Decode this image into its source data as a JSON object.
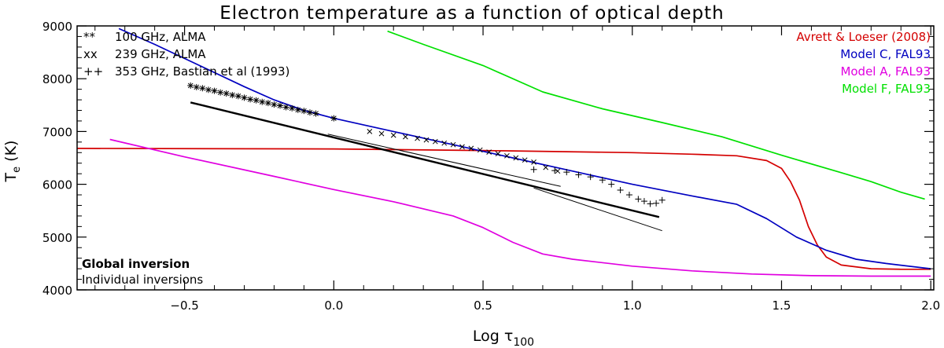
{
  "chart_data": {
    "type": "line",
    "title": "Electron temperature as a function of optical depth",
    "xlabel": {
      "main": "Log τ",
      "sub": "100"
    },
    "ylabel": {
      "main": "T",
      "sub": "e",
      "unit": " (K)"
    },
    "xlim": [
      -0.86,
      2.01
    ],
    "ylim": [
      4000,
      9000
    ],
    "x_ticks": [
      -0.5,
      0.0,
      0.5,
      1.0,
      1.5,
      2.0
    ],
    "x_tick_labels": [
      "−0.5",
      "0.0",
      "0.5",
      "1.0",
      "1.5",
      "2.0"
    ],
    "y_ticks": [
      4000,
      5000,
      6000,
      7000,
      8000,
      9000
    ],
    "y_tick_labels": [
      "4000",
      "5000",
      "6000",
      "7000",
      "8000",
      "9000"
    ],
    "grid": false,
    "model_legend": {
      "placement": "top-right",
      "entries": [
        {
          "label": "Avrett & Loeser (2008)",
          "color": "#d40000"
        },
        {
          "label": "Model C, FAL93",
          "color": "#0000c0"
        },
        {
          "label": "Model A, FAL93",
          "color": "#e000e0"
        },
        {
          "label": "Model F, FAL93",
          "color": "#00e000"
        }
      ]
    },
    "obs_legend": {
      "placement": "top-left",
      "entries": [
        {
          "symbols": "**",
          "label": "100 GHz, ALMA"
        },
        {
          "symbols": "xx",
          "label": "239 GHz, ALMA"
        },
        {
          "symbols": "++",
          "label": "353 GHz, Bastian et al (1993)"
        }
      ]
    },
    "notes": [
      {
        "text": "Global inversion",
        "style": "bold"
      },
      {
        "text": "Individual inversions",
        "style": "normal"
      }
    ],
    "series": [
      {
        "name": "Avrett & Loeser (2008)",
        "color": "#d40000",
        "x": [
          -0.86,
          0.0,
          0.5,
          1.0,
          1.2,
          1.35,
          1.45,
          1.5,
          1.53,
          1.56,
          1.59,
          1.62,
          1.65,
          1.7,
          1.8,
          1.9,
          2.0
        ],
        "y": [
          6680,
          6670,
          6640,
          6600,
          6570,
          6540,
          6450,
          6300,
          6050,
          5700,
          5200,
          4850,
          4620,
          4470,
          4400,
          4390,
          4390
        ]
      },
      {
        "name": "Model C, FAL93",
        "color": "#0000c0",
        "x": [
          -0.72,
          -0.6,
          -0.45,
          -0.3,
          -0.2,
          -0.1,
          0.0,
          0.2,
          0.4,
          0.6,
          0.8,
          1.0,
          1.2,
          1.35,
          1.45,
          1.55,
          1.65,
          1.75,
          1.85,
          2.0
        ],
        "y": [
          8950,
          8650,
          8250,
          7850,
          7600,
          7400,
          7250,
          7000,
          6750,
          6500,
          6250,
          6000,
          5780,
          5620,
          5350,
          5000,
          4750,
          4580,
          4500,
          4400
        ]
      },
      {
        "name": "Model A, FAL93",
        "color": "#e000e0",
        "x": [
          -0.75,
          -0.5,
          -0.2,
          0.0,
          0.2,
          0.4,
          0.5,
          0.6,
          0.7,
          0.8,
          1.0,
          1.2,
          1.4,
          1.6,
          1.8,
          2.0
        ],
        "y": [
          6850,
          6520,
          6150,
          5900,
          5670,
          5400,
          5180,
          4900,
          4680,
          4580,
          4450,
          4360,
          4300,
          4270,
          4260,
          4260
        ]
      },
      {
        "name": "Model F, FAL93",
        "color": "#00e000",
        "x": [
          0.18,
          0.3,
          0.5,
          0.7,
          0.9,
          1.1,
          1.3,
          1.5,
          1.7,
          1.8,
          1.9,
          1.98
        ],
        "y": [
          8900,
          8650,
          8250,
          7750,
          7430,
          7170,
          6900,
          6550,
          6220,
          6050,
          5850,
          5720
        ]
      },
      {
        "name": "Global inversion",
        "color": "#000000",
        "width": 2.4,
        "x": [
          -0.48,
          1.09
        ],
        "y": [
          7550,
          5380
        ]
      },
      {
        "name": "Individual inversions (100 GHz)",
        "color": "#000000",
        "width": 1.0,
        "x": [
          -0.02,
          0.76
        ],
        "y": [
          6950,
          5960
        ]
      },
      {
        "name": "Individual inversions (353 GHz)",
        "color": "#000000",
        "width": 1.0,
        "x": [
          0.67,
          1.1
        ],
        "y": [
          5930,
          5120
        ]
      }
    ],
    "scatter": [
      {
        "marker": "*",
        "x": [
          -0.48,
          -0.46,
          -0.44,
          -0.42,
          -0.4,
          -0.38,
          -0.36,
          -0.34,
          -0.32,
          -0.3,
          -0.28,
          -0.26,
          -0.24,
          -0.22,
          -0.2,
          -0.18,
          -0.16,
          -0.14,
          -0.12,
          -0.1,
          -0.08,
          -0.06,
          0.0
        ],
        "y": [
          7870,
          7840,
          7820,
          7790,
          7770,
          7740,
          7720,
          7690,
          7670,
          7640,
          7610,
          7590,
          7560,
          7540,
          7510,
          7490,
          7460,
          7440,
          7410,
          7390,
          7360,
          7340,
          7250
        ]
      },
      {
        "marker": "x",
        "x": [
          0.12,
          0.16,
          0.2,
          0.24,
          0.28,
          0.31,
          0.34,
          0.37,
          0.4,
          0.43,
          0.46,
          0.49,
          0.52,
          0.55,
          0.58,
          0.61,
          0.64,
          0.67,
          0.71,
          0.75
        ],
        "y": [
          7000,
          6960,
          6930,
          6900,
          6870,
          6840,
          6810,
          6780,
          6750,
          6710,
          6680,
          6650,
          6610,
          6580,
          6540,
          6500,
          6460,
          6420,
          6320,
          6250
        ]
      },
      {
        "marker": "+",
        "x": [
          0.67,
          0.74,
          0.78,
          0.82,
          0.86,
          0.9,
          0.93,
          0.96,
          0.99,
          1.02,
          1.04,
          1.06,
          1.08,
          1.1
        ],
        "y": [
          6280,
          6260,
          6230,
          6180,
          6140,
          6080,
          6000,
          5890,
          5800,
          5720,
          5680,
          5630,
          5640,
          5700
        ]
      }
    ]
  }
}
